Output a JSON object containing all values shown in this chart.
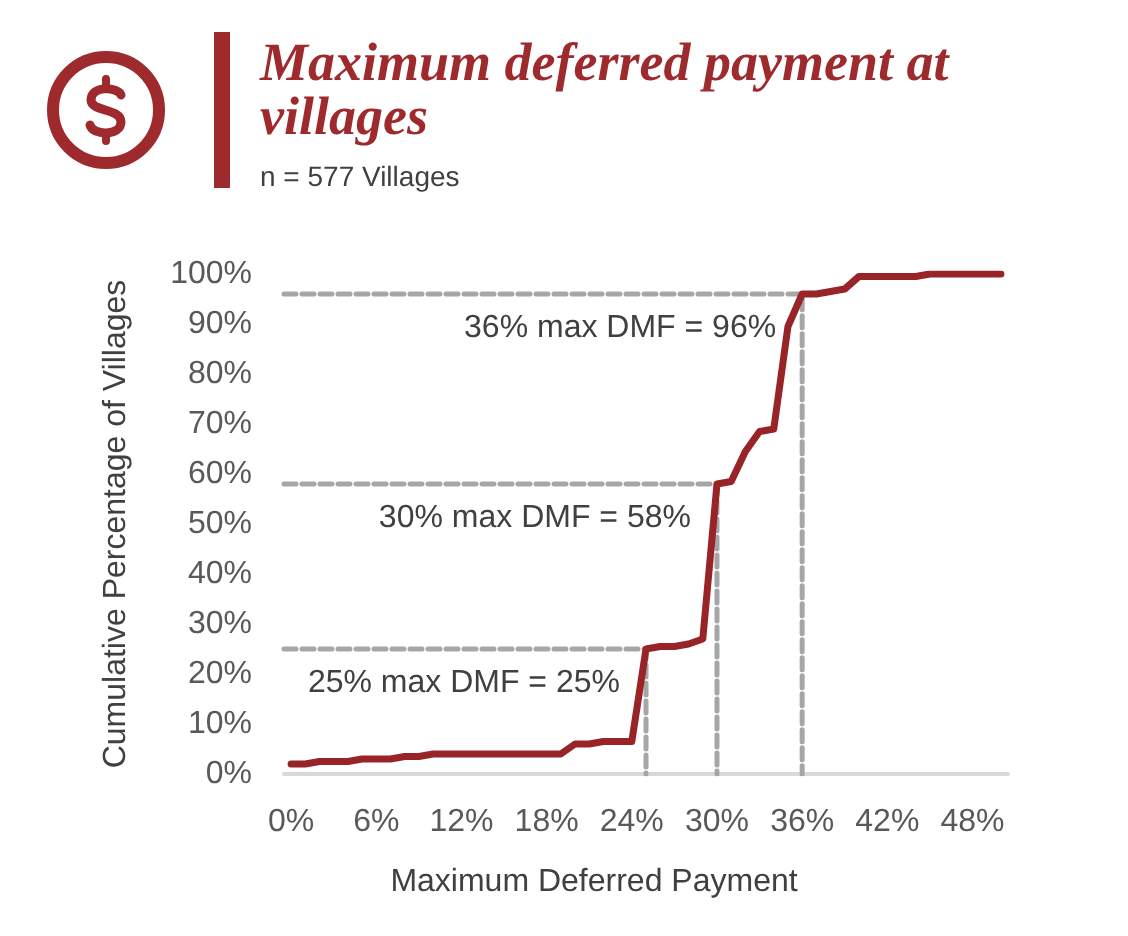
{
  "chart_data": {
    "type": "line",
    "title": "Maximum deferred payment at villages",
    "subtitle": "n = 577 Villages",
    "xlabel": "Maximum Deferred Payment",
    "ylabel": "Cumulative Percentage of Villages",
    "x": [
      0,
      1,
      2,
      3,
      4,
      5,
      6,
      7,
      8,
      9,
      10,
      11,
      12,
      13,
      14,
      15,
      16,
      17,
      18,
      19,
      20,
      21,
      22,
      23,
      24,
      25,
      26,
      27,
      28,
      29,
      30,
      31,
      32,
      33,
      34,
      35,
      36,
      37,
      38,
      39,
      40,
      41,
      42,
      43,
      44,
      45,
      46,
      47,
      48,
      49,
      50
    ],
    "series": [
      {
        "color": "#982428",
        "values": [
          2,
          2,
          2.5,
          2.5,
          2.5,
          3,
          3,
          3,
          3.5,
          3.5,
          4,
          4,
          4,
          4,
          4,
          4,
          4,
          4,
          4,
          4,
          6,
          6,
          6.5,
          6.5,
          6.5,
          25,
          25.5,
          25.5,
          26,
          27,
          58,
          58.5,
          64.5,
          68.5,
          69,
          89.5,
          96,
          96,
          96.5,
          97,
          99.5,
          99.5,
          99.5,
          99.5,
          99.5,
          100,
          100,
          100,
          100,
          100,
          100
        ]
      },
      {
        "color": "#a6a6a6",
        "line_style": "dashed",
        "x": [
          -0.5,
          25,
          25
        ],
        "values": [
          25,
          25,
          0
        ]
      },
      {
        "color": "#a6a6a6",
        "line_style": "dashed",
        "x": [
          -0.5,
          30,
          30
        ],
        "values": [
          58,
          58,
          0
        ]
      },
      {
        "color": "#a6a6a6",
        "line_style": "dashed",
        "x": [
          -0.5,
          36,
          36
        ],
        "values": [
          96,
          96,
          0
        ]
      }
    ],
    "annotations": [
      {
        "text": "25% max DMF = 25%",
        "x": 25,
        "y": 25
      },
      {
        "text": "30% max DMF = 58%",
        "x": 30,
        "y": 58
      },
      {
        "text": "36% max DMF = 96%",
        "x": 36,
        "y": 96
      }
    ],
    "xlim": [
      -0.5,
      50.5
    ],
    "xticks": [
      {
        "value": 0,
        "label": "0%"
      },
      {
        "value": 6,
        "label": "6%"
      },
      {
        "value": 12,
        "label": "12%"
      },
      {
        "value": 18,
        "label": "18%"
      },
      {
        "value": 24,
        "label": "24%"
      },
      {
        "value": 30,
        "label": "30%"
      },
      {
        "value": 36,
        "label": "36%"
      },
      {
        "value": 42,
        "label": "42%"
      },
      {
        "value": 48,
        "label": "48%"
      }
    ],
    "ylim": [
      0,
      100
    ],
    "yticks": [
      {
        "value": 0,
        "label": "0%"
      },
      {
        "value": 10,
        "label": "10%"
      },
      {
        "value": 20,
        "label": "20%"
      },
      {
        "value": 30,
        "label": "30%"
      },
      {
        "value": 40,
        "label": "40%"
      },
      {
        "value": 50,
        "label": "50%"
      },
      {
        "value": 60,
        "label": "60%"
      },
      {
        "value": 70,
        "label": "70%"
      },
      {
        "value": 80,
        "label": "80%"
      },
      {
        "value": 90,
        "label": "90%"
      },
      {
        "value": 100,
        "label": "100%"
      }
    ],
    "marker": "none",
    "line_style": "solid"
  }
}
